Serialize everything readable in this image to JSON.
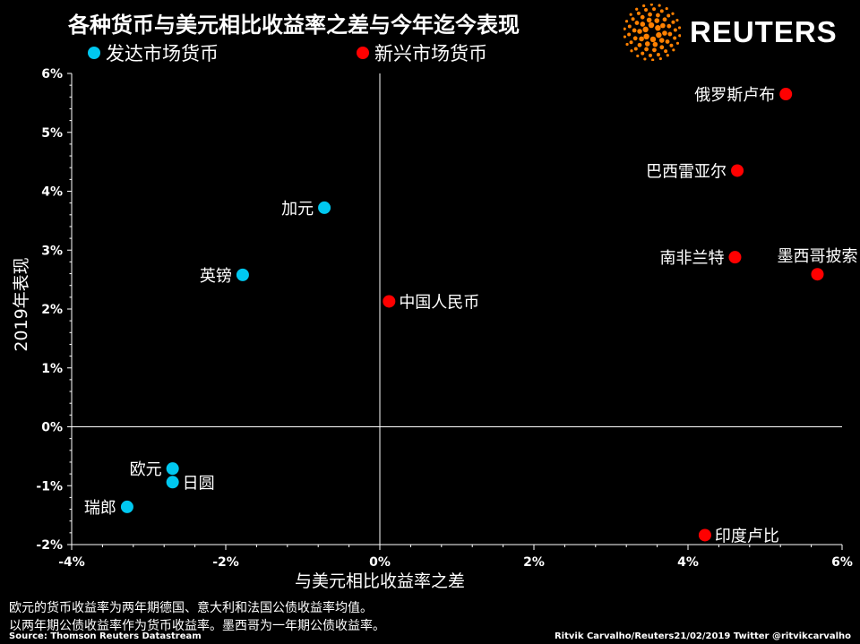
{
  "title": "各种货币与美元相比收益率之差与今年迄今表现",
  "brand": {
    "name": "REUTERS",
    "icon": "reuters-dot-logo-icon",
    "color": "#ff8000"
  },
  "chart_data": {
    "type": "scatter",
    "xlabel": "与美元相比收益率之差",
    "ylabel": "2019年表现",
    "xlim": [
      -4,
      6
    ],
    "ylim": [
      -2,
      6
    ],
    "x_ticks": [
      "-4%",
      "-2%",
      "0%",
      "2%",
      "4%",
      "6%"
    ],
    "y_ticks": [
      "-2%",
      "-1%",
      "0%",
      "1%",
      "2%",
      "3%",
      "4%",
      "5%",
      "6%"
    ],
    "grid": false,
    "legend_position": "top-left",
    "series": [
      {
        "name": "发达市场货币",
        "color": "#00c8f0",
        "points": [
          {
            "label": "加元",
            "x": -0.72,
            "y": 3.72,
            "label_side": "left"
          },
          {
            "label": "英镑",
            "x": -1.78,
            "y": 2.58,
            "label_side": "left"
          },
          {
            "label": "欧元",
            "x": -2.69,
            "y": -0.71,
            "label_side": "left"
          },
          {
            "label": "日圆",
            "x": -2.69,
            "y": -0.94,
            "label_side": "right"
          },
          {
            "label": "瑞郎",
            "x": -3.28,
            "y": -1.36,
            "label_side": "left"
          }
        ]
      },
      {
        "name": "新兴市场货币",
        "color": "#ff0000",
        "points": [
          {
            "label": "俄罗斯卢布",
            "x": 5.27,
            "y": 5.65,
            "label_side": "left"
          },
          {
            "label": "巴西雷亚尔",
            "x": 4.64,
            "y": 4.35,
            "label_side": "left"
          },
          {
            "label": "南非兰特",
            "x": 4.61,
            "y": 2.88,
            "label_side": "left"
          },
          {
            "label": "墨西哥披索",
            "x": 5.68,
            "y": 2.59,
            "label_side": "above"
          },
          {
            "label": "中国人民币",
            "x": 0.12,
            "y": 2.13,
            "label_side": "right"
          },
          {
            "label": "印度卢比",
            "x": 4.22,
            "y": -1.84,
            "label_side": "right"
          }
        ]
      }
    ]
  },
  "notes": [
    "欧元的货币收益率为两年期德国、意大利和法国公债收益率均值。",
    "以两年期公债收益率作为货币收益率。墨西哥为一年期公债收益率。"
  ],
  "source": "Source: Thomson Reuters Datastream",
  "credit": "Ritvik Carvalho/Reuters21/02/2019 Twitter @ritvikcarvalho"
}
